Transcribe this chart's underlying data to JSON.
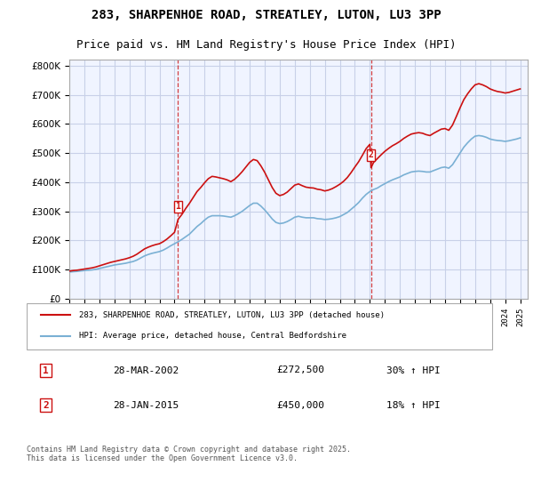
{
  "title": "283, SHARPENHOE ROAD, STREATLEY, LUTON, LU3 3PP",
  "subtitle": "Price paid vs. HM Land Registry's House Price Index (HPI)",
  "ylabel_ticks": [
    "£0",
    "£100K",
    "£200K",
    "£300K",
    "£400K",
    "£500K",
    "£600K",
    "£700K",
    "£800K"
  ],
  "ytick_values": [
    0,
    100000,
    200000,
    300000,
    400000,
    500000,
    600000,
    700000,
    800000
  ],
  "ylim": [
    0,
    820000
  ],
  "xlim_start": 1995.0,
  "xlim_end": 2025.5,
  "legend1": "283, SHARPENHOE ROAD, STREATLEY, LUTON, LU3 3PP (detached house)",
  "legend2": "HPI: Average price, detached house, Central Bedfordshire",
  "sale1_label": "1",
  "sale1_date": "28-MAR-2002",
  "sale1_price": "£272,500",
  "sale1_hpi": "30% ↑ HPI",
  "sale1_x": 2002.24,
  "sale1_y": 272500,
  "sale2_label": "2",
  "sale2_date": "28-JAN-2015",
  "sale2_price": "£450,000",
  "sale2_hpi": "18% ↑ HPI",
  "sale2_x": 2015.08,
  "sale2_y": 450000,
  "background_color": "#f0f4ff",
  "grid_color": "#c8d0e8",
  "red_line_color": "#cc1111",
  "blue_line_color": "#7ab0d4",
  "vline_color": "#cc1111",
  "footer": "Contains HM Land Registry data © Crown copyright and database right 2025.\nThis data is licensed under the Open Government Licence v3.0.",
  "hpi_data_x": [
    1995.0,
    1995.25,
    1995.5,
    1995.75,
    1996.0,
    1996.25,
    1996.5,
    1996.75,
    1997.0,
    1997.25,
    1997.5,
    1997.75,
    1998.0,
    1998.25,
    1998.5,
    1998.75,
    1999.0,
    1999.25,
    1999.5,
    1999.75,
    2000.0,
    2000.25,
    2000.5,
    2000.75,
    2001.0,
    2001.25,
    2001.5,
    2001.75,
    2002.0,
    2002.25,
    2002.5,
    2002.75,
    2003.0,
    2003.25,
    2003.5,
    2003.75,
    2004.0,
    2004.25,
    2004.5,
    2004.75,
    2005.0,
    2005.25,
    2005.5,
    2005.75,
    2006.0,
    2006.25,
    2006.5,
    2006.75,
    2007.0,
    2007.25,
    2007.5,
    2007.75,
    2008.0,
    2008.25,
    2008.5,
    2008.75,
    2009.0,
    2009.25,
    2009.5,
    2009.75,
    2010.0,
    2010.25,
    2010.5,
    2010.75,
    2011.0,
    2011.25,
    2011.5,
    2011.75,
    2012.0,
    2012.25,
    2012.5,
    2012.75,
    2013.0,
    2013.25,
    2013.5,
    2013.75,
    2014.0,
    2014.25,
    2014.5,
    2014.75,
    2015.0,
    2015.25,
    2015.5,
    2015.75,
    2016.0,
    2016.25,
    2016.5,
    2016.75,
    2017.0,
    2017.25,
    2017.5,
    2017.75,
    2018.0,
    2018.25,
    2018.5,
    2018.75,
    2019.0,
    2019.25,
    2019.5,
    2019.75,
    2020.0,
    2020.25,
    2020.5,
    2020.75,
    2021.0,
    2021.25,
    2021.5,
    2021.75,
    2022.0,
    2022.25,
    2022.5,
    2022.75,
    2023.0,
    2023.25,
    2023.5,
    2023.75,
    2024.0,
    2024.25,
    2024.5,
    2024.75,
    2025.0
  ],
  "hpi_data_y": [
    92000,
    93000,
    94000,
    95500,
    97000,
    98000,
    99000,
    101000,
    104000,
    107000,
    110000,
    113000,
    116000,
    118000,
    120000,
    122000,
    125000,
    128000,
    133000,
    140000,
    147000,
    152000,
    156000,
    159000,
    162000,
    167000,
    174000,
    182000,
    189000,
    196000,
    204000,
    213000,
    222000,
    235000,
    248000,
    258000,
    270000,
    280000,
    285000,
    285000,
    285000,
    284000,
    282000,
    280000,
    285000,
    292000,
    300000,
    310000,
    320000,
    328000,
    328000,
    318000,
    305000,
    290000,
    274000,
    262000,
    258000,
    260000,
    265000,
    272000,
    280000,
    283000,
    280000,
    278000,
    278000,
    278000,
    275000,
    274000,
    272000,
    273000,
    275000,
    278000,
    282000,
    289000,
    296000,
    307000,
    318000,
    330000,
    345000,
    358000,
    368000,
    375000,
    380000,
    388000,
    395000,
    402000,
    408000,
    413000,
    418000,
    425000,
    430000,
    435000,
    437000,
    438000,
    437000,
    435000,
    435000,
    440000,
    445000,
    450000,
    452000,
    448000,
    460000,
    480000,
    500000,
    520000,
    535000,
    548000,
    558000,
    560000,
    558000,
    554000,
    548000,
    545000,
    543000,
    542000,
    540000,
    542000,
    545000,
    548000,
    552000
  ],
  "price_data_x": [
    1995.0,
    1995.25,
    1995.5,
    1995.75,
    1996.0,
    1996.25,
    1996.5,
    1996.75,
    1997.0,
    1997.25,
    1997.5,
    1997.75,
    1998.0,
    1998.25,
    1998.5,
    1998.75,
    1999.0,
    1999.25,
    1999.5,
    1999.75,
    2000.0,
    2000.25,
    2000.5,
    2000.75,
    2001.0,
    2001.25,
    2001.5,
    2001.75,
    2002.0,
    2002.24,
    2002.5,
    2002.75,
    2003.0,
    2003.25,
    2003.5,
    2003.75,
    2004.0,
    2004.25,
    2004.5,
    2004.75,
    2005.0,
    2005.25,
    2005.5,
    2005.75,
    2006.0,
    2006.25,
    2006.5,
    2006.75,
    2007.0,
    2007.25,
    2007.5,
    2007.75,
    2008.0,
    2008.25,
    2008.5,
    2008.75,
    2009.0,
    2009.25,
    2009.5,
    2009.75,
    2010.0,
    2010.25,
    2010.5,
    2010.75,
    2011.0,
    2011.25,
    2011.5,
    2011.75,
    2012.0,
    2012.25,
    2012.5,
    2012.75,
    2013.0,
    2013.25,
    2013.5,
    2013.75,
    2014.0,
    2014.25,
    2014.5,
    2014.75,
    2015.0,
    2015.08,
    2015.25,
    2015.5,
    2015.75,
    2016.0,
    2016.25,
    2016.5,
    2016.75,
    2017.0,
    2017.25,
    2017.5,
    2017.75,
    2018.0,
    2018.25,
    2018.5,
    2018.75,
    2019.0,
    2019.25,
    2019.5,
    2019.75,
    2020.0,
    2020.25,
    2020.5,
    2020.75,
    2021.0,
    2021.25,
    2021.5,
    2021.75,
    2022.0,
    2022.25,
    2022.5,
    2022.75,
    2023.0,
    2023.25,
    2023.5,
    2023.75,
    2024.0,
    2024.25,
    2024.5,
    2024.75,
    2025.0
  ],
  "price_data_y": [
    95000,
    97000,
    98000,
    100000,
    102000,
    104000,
    106000,
    109000,
    113000,
    117000,
    121000,
    125000,
    128000,
    131000,
    134000,
    137000,
    141000,
    146000,
    153000,
    162000,
    171000,
    177000,
    182000,
    186000,
    189000,
    196000,
    205000,
    216000,
    228000,
    272500,
    290000,
    310000,
    328000,
    348000,
    368000,
    382000,
    398000,
    412000,
    420000,
    418000,
    415000,
    412000,
    408000,
    402000,
    410000,
    422000,
    436000,
    452000,
    468000,
    478000,
    474000,
    456000,
    434000,
    408000,
    382000,
    362000,
    354000,
    358000,
    366000,
    378000,
    390000,
    394000,
    388000,
    383000,
    381000,
    380000,
    376000,
    374000,
    370000,
    373000,
    378000,
    385000,
    393000,
    403000,
    416000,
    433000,
    452000,
    470000,
    492000,
    515000,
    530000,
    450000,
    468000,
    481000,
    494000,
    506000,
    516000,
    525000,
    532000,
    540000,
    550000,
    558000,
    565000,
    568000,
    570000,
    568000,
    563000,
    560000,
    568000,
    575000,
    582000,
    584000,
    578000,
    596000,
    625000,
    655000,
    683000,
    703000,
    720000,
    734000,
    738000,
    734000,
    728000,
    720000,
    715000,
    711000,
    709000,
    706000,
    708000,
    712000,
    716000,
    720000
  ]
}
